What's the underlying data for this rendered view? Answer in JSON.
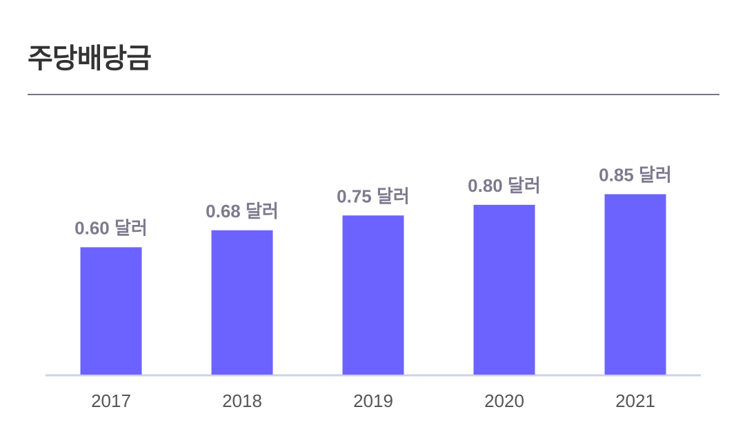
{
  "header": {
    "title": "주당배당금"
  },
  "colors": {
    "bar": "#6c63ff",
    "baseline": "#c9d3e8",
    "rule": "#7a7288",
    "value_label": "#7d7a8e",
    "tick_label": "#555555",
    "title": "#333333"
  },
  "chart_data": {
    "type": "bar",
    "title": "주당배당금",
    "xlabel": "",
    "ylabel": "",
    "categories": [
      "2017",
      "2018",
      "2019",
      "2020",
      "2021"
    ],
    "values": [
      0.6,
      0.68,
      0.75,
      0.8,
      0.85
    ],
    "data_labels": [
      "0.60 달러",
      "0.68 달러",
      "0.75 달러",
      "0.80 달러",
      "0.85 달러"
    ],
    "ylim": [
      0,
      1.18
    ],
    "grid": false,
    "legend": "none"
  }
}
